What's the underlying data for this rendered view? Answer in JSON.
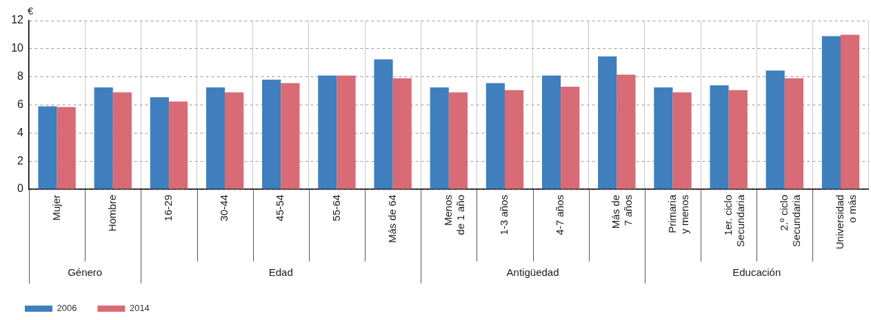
{
  "chart_data": {
    "type": "bar",
    "ylabel": "€",
    "categories": [
      "Mujer",
      "Hombre",
      "16-29",
      "30-44",
      "45-54",
      "55-64",
      "Más de 64",
      "Menos\nde 1 año",
      "1-3 años",
      "4-7 años",
      "Más de\n7 años",
      "Primaria\ny menos",
      "1er. ciclo\nSecundaria",
      "2.º ciclo\nSecundaria",
      "Universidad\no más"
    ],
    "series": [
      {
        "name": "2006",
        "color": "#407fbd",
        "values": [
          5.9,
          7.25,
          6.55,
          7.25,
          7.8,
          8.1,
          9.25,
          7.25,
          7.55,
          8.1,
          9.45,
          7.25,
          7.4,
          8.45,
          10.9
        ]
      },
      {
        "name": "2014",
        "color": "#d86b76",
        "values": [
          5.85,
          6.9,
          6.25,
          6.9,
          7.55,
          8.1,
          7.9,
          6.9,
          7.05,
          7.3,
          8.15,
          6.9,
          7.05,
          7.9,
          11.0
        ]
      }
    ],
    "ylim": [
      0,
      12
    ],
    "yticks": [
      0,
      2,
      4,
      6,
      8,
      10,
      12
    ],
    "grid": true,
    "legend": "bottom left",
    "annotations": [
      "Género",
      "Edad",
      "Antigüedad",
      "Educación"
    ]
  }
}
